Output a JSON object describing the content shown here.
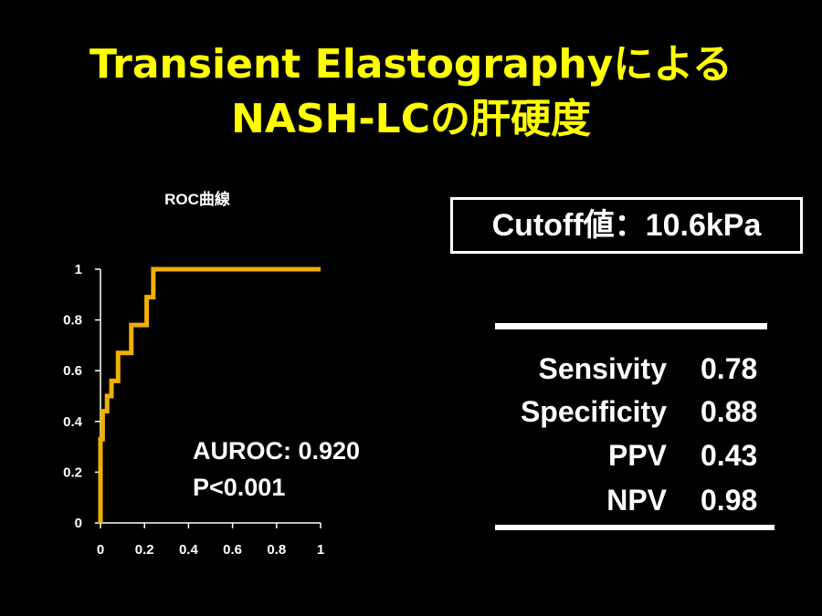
{
  "slide": {
    "title_line1": "Transient Elastographyによる",
    "title_line2": "NASH-LCの肝硬度",
    "cutoff_box": "Cutoff値：10.6kPa",
    "stats": [
      {
        "label": "Sensivity",
        "value": "0.78"
      },
      {
        "label": "Specificity",
        "value": "0.88"
      },
      {
        "label": "PPV",
        "value": "0.43"
      },
      {
        "label": "NPV",
        "value": "0.98"
      }
    ]
  },
  "chart_data": {
    "type": "line",
    "title": "ROC曲線",
    "xlabel": "",
    "ylabel": "",
    "xlim": [
      0,
      1
    ],
    "ylim": [
      0,
      1
    ],
    "x_ticks": [
      "0",
      "0.2",
      "0.4",
      "0.6",
      "0.8",
      "1"
    ],
    "y_ticks": [
      "0",
      "0.2",
      "0.4",
      "0.6",
      "0.8",
      "1"
    ],
    "grid": false,
    "line_color": "#f0b000",
    "annotations": [
      "AUROC: 0.920",
      "P<0.001"
    ],
    "series": [
      {
        "step": true,
        "x": [
          0,
          0,
          0.01,
          0.01,
          0.03,
          0.03,
          0.05,
          0.05,
          0.08,
          0.08,
          0.11,
          0.11,
          0.14,
          0.14,
          0.21,
          0.21,
          0.24,
          0.24,
          1.0
        ],
        "y": [
          0,
          0.33,
          0.33,
          0.44,
          0.44,
          0.5,
          0.5,
          0.56,
          0.56,
          0.67,
          0.67,
          0.67,
          0.67,
          0.78,
          0.78,
          0.89,
          0.89,
          1.0,
          1.0
        ]
      }
    ]
  }
}
